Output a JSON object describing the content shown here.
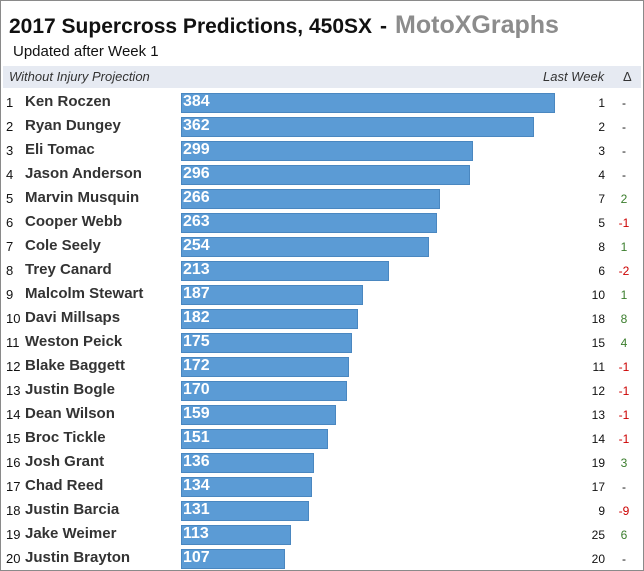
{
  "header": {
    "title": "2017 Supercross Predictions, 450SX",
    "separator": "-",
    "brand": "MotoXGraphs",
    "subtitle": "Updated after Week 1",
    "projection_label": "Without Injury Projection",
    "last_week_label": "Last Week",
    "delta_label": "Δ"
  },
  "colors": {
    "bar": "#5b9bd5",
    "header_band": "#e6eaf2",
    "delta_positive": "#3a7d2c",
    "delta_negative": "#cc0000",
    "delta_neutral": "#111111"
  },
  "chart_data": {
    "type": "bar",
    "orientation": "horizontal",
    "title": "2017 Supercross Predictions, 450SX",
    "subtitle": "Updated after Week 1",
    "xlim": [
      0,
      400
    ],
    "grid": false,
    "legend": "none",
    "rows": [
      {
        "rank": "1",
        "rider": "Ken Roczen",
        "value": 384,
        "last_week": "1",
        "delta": "-"
      },
      {
        "rank": "2",
        "rider": "Ryan Dungey",
        "value": 362,
        "last_week": "2",
        "delta": "-"
      },
      {
        "rank": "3",
        "rider": "Eli Tomac",
        "value": 299,
        "last_week": "3",
        "delta": "-"
      },
      {
        "rank": "4",
        "rider": "Jason Anderson",
        "value": 296,
        "last_week": "4",
        "delta": "-"
      },
      {
        "rank": "5",
        "rider": "Marvin Musquin",
        "value": 266,
        "last_week": "7",
        "delta": "2"
      },
      {
        "rank": "6",
        "rider": "Cooper Webb",
        "value": 263,
        "last_week": "5",
        "delta": "-1"
      },
      {
        "rank": "7",
        "rider": "Cole Seely",
        "value": 254,
        "last_week": "8",
        "delta": "1"
      },
      {
        "rank": "8",
        "rider": "Trey Canard",
        "value": 213,
        "last_week": "6",
        "delta": "-2"
      },
      {
        "rank": "9",
        "rider": "Malcolm Stewart",
        "value": 187,
        "last_week": "10",
        "delta": "1"
      },
      {
        "rank": "10",
        "rider": "Davi Millsaps",
        "value": 182,
        "last_week": "18",
        "delta": "8"
      },
      {
        "rank": "11",
        "rider": "Weston Peick",
        "value": 175,
        "last_week": "15",
        "delta": "4"
      },
      {
        "rank": "12",
        "rider": "Blake Baggett",
        "value": 172,
        "last_week": "11",
        "delta": "-1"
      },
      {
        "rank": "13",
        "rider": "Justin Bogle",
        "value": 170,
        "last_week": "12",
        "delta": "-1"
      },
      {
        "rank": "14",
        "rider": "Dean Wilson",
        "value": 159,
        "last_week": "13",
        "delta": "-1"
      },
      {
        "rank": "15",
        "rider": "Broc Tickle",
        "value": 151,
        "last_week": "14",
        "delta": "-1"
      },
      {
        "rank": "16",
        "rider": "Josh Grant",
        "value": 136,
        "last_week": "19",
        "delta": "3"
      },
      {
        "rank": "17",
        "rider": "Chad Reed",
        "value": 134,
        "last_week": "17",
        "delta": "-"
      },
      {
        "rank": "18",
        "rider": "Justin Barcia",
        "value": 131,
        "last_week": "9",
        "delta": "-9"
      },
      {
        "rank": "19",
        "rider": "Jake Weimer",
        "value": 113,
        "last_week": "25",
        "delta": "6"
      },
      {
        "rank": "20",
        "rider": "Justin Brayton",
        "value": 107,
        "last_week": "20",
        "delta": "-"
      }
    ]
  }
}
